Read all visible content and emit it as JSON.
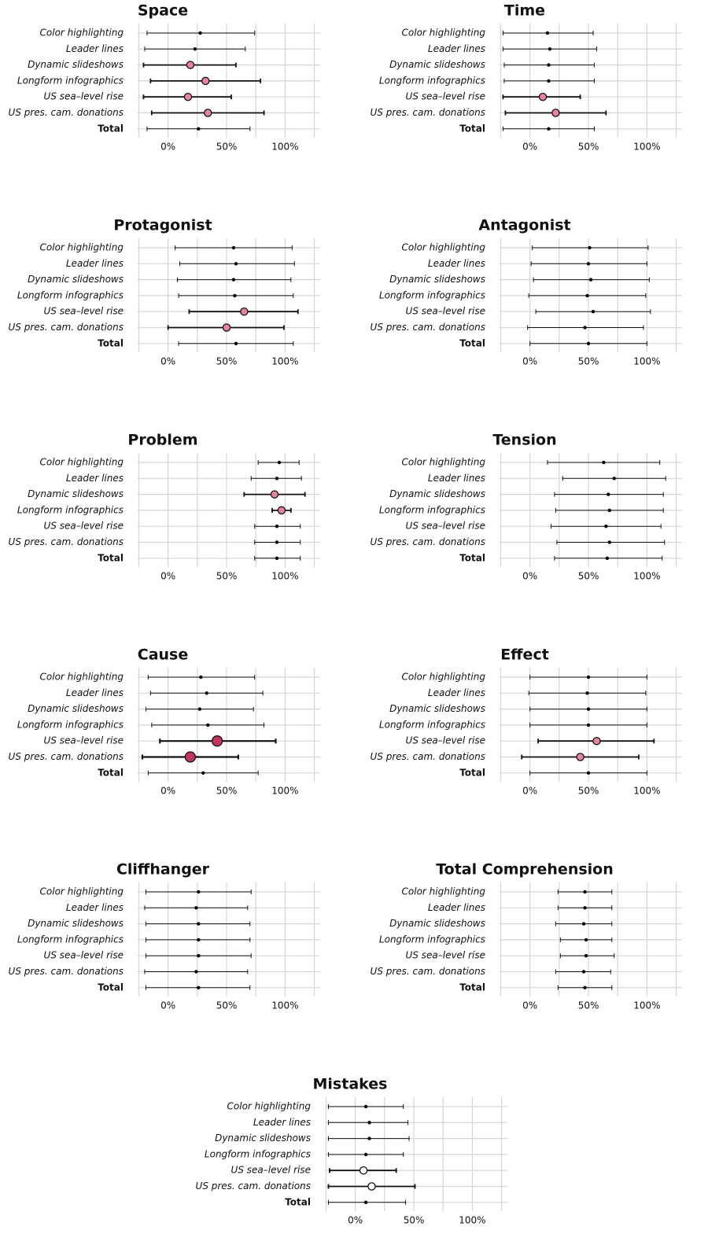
{
  "chart_data": [
    {
      "type": "errorbar",
      "title": "Space",
      "categories": [
        "Color highlighting",
        "Leader lines",
        "Dynamic slideshows",
        "Longform infographics",
        "US sea–level rise",
        "US pres. cam. donations",
        "Total"
      ],
      "values": [
        27.5,
        23,
        19,
        32,
        17,
        34,
        26
      ],
      "low": [
        -18,
        -20,
        -21,
        -15,
        -21,
        -14,
        -18
      ],
      "high": [
        74,
        66,
        58,
        79,
        54,
        82,
        70
      ],
      "point_colors": [
        "#000000",
        "#000000",
        "#e8849f",
        "#e8849f",
        "#e8849f",
        "#e8849f",
        "#000000"
      ],
      "point_sizes": [
        "small",
        "small",
        "medium",
        "medium",
        "medium",
        "medium",
        "small"
      ],
      "xlim": [
        -26,
        130
      ],
      "xgrid": [
        -25,
        0,
        25,
        50,
        75,
        100,
        125
      ],
      "xticks": [
        {
          "value": 0,
          "label": "0%"
        },
        {
          "value": 50,
          "label": "50%"
        },
        {
          "value": 100,
          "label": "100%"
        }
      ]
    },
    {
      "type": "errorbar",
      "title": "Time",
      "categories": [
        "Color highlighting",
        "Leader lines",
        "Dynamic slideshows",
        "Longform infographics",
        "US sea–level rise",
        "US pres. cam. donations",
        "Total"
      ],
      "values": [
        15,
        17,
        16,
        16,
        11,
        22,
        16
      ],
      "low": [
        -23,
        -23,
        -22,
        -22,
        -23,
        -21,
        -23
      ],
      "high": [
        54,
        57,
        55,
        55,
        43,
        65,
        55
      ],
      "point_colors": [
        "#000000",
        "#000000",
        "#000000",
        "#000000",
        "#e8849f",
        "#e8849f",
        "#000000"
      ],
      "point_sizes": [
        "small",
        "small",
        "small",
        "small",
        "medium",
        "medium",
        "small"
      ],
      "xlim": [
        -26,
        130
      ],
      "xgrid": [
        -25,
        0,
        25,
        50,
        75,
        100,
        125
      ],
      "xticks": [
        {
          "value": 0,
          "label": "0%"
        },
        {
          "value": 50,
          "label": "50%"
        },
        {
          "value": 100,
          "label": "100%"
        }
      ]
    },
    {
      "type": "errorbar",
      "title": "Protagonist",
      "categories": [
        "Color highlighting",
        "Leader lines",
        "Dynamic slideshows",
        "Longform infographics",
        "US sea–level rise",
        "US pres. cam. donations",
        "Total"
      ],
      "values": [
        56,
        58,
        56,
        57,
        65,
        50,
        58
      ],
      "low": [
        6,
        10,
        8,
        9,
        18,
        0,
        9
      ],
      "high": [
        106,
        108,
        105,
        107,
        111,
        99,
        107
      ],
      "point_colors": [
        "#000000",
        "#000000",
        "#000000",
        "#000000",
        "#e8849f",
        "#e8849f",
        "#000000"
      ],
      "point_sizes": [
        "small",
        "small",
        "small",
        "small",
        "medium",
        "medium",
        "small"
      ],
      "xlim": [
        -26,
        130
      ],
      "xgrid": [
        -25,
        0,
        25,
        50,
        75,
        100,
        125
      ],
      "xticks": [
        {
          "value": 0,
          "label": "0%"
        },
        {
          "value": 50,
          "label": "50%"
        },
        {
          "value": 100,
          "label": "100%"
        }
      ]
    },
    {
      "type": "errorbar",
      "title": "Antagonist",
      "categories": [
        "Color highlighting",
        "Leader lines",
        "Dynamic slideshows",
        "Longform infographics",
        "US sea–level rise",
        "US pres. cam. donations",
        "Total"
      ],
      "values": [
        51,
        50,
        52,
        49,
        54,
        47,
        50
      ],
      "low": [
        2,
        1,
        3,
        -1,
        5,
        -2,
        0
      ],
      "high": [
        101,
        100,
        102,
        99,
        103,
        97,
        100
      ],
      "point_colors": [
        "#000000",
        "#000000",
        "#000000",
        "#000000",
        "#000000",
        "#000000",
        "#000000"
      ],
      "point_sizes": [
        "small",
        "small",
        "small",
        "small",
        "small",
        "small",
        "small"
      ],
      "xlim": [
        -26,
        130
      ],
      "xgrid": [
        -25,
        0,
        25,
        50,
        75,
        100,
        125
      ],
      "xticks": [
        {
          "value": 0,
          "label": "0%"
        },
        {
          "value": 50,
          "label": "50%"
        },
        {
          "value": 100,
          "label": "100%"
        }
      ]
    },
    {
      "type": "errorbar",
      "title": "Problem",
      "categories": [
        "Color highlighting",
        "Leader lines",
        "Dynamic slideshows",
        "Longform infographics",
        "US sea–level rise",
        "US pres. cam. donations",
        "Total"
      ],
      "values": [
        95,
        93,
        91,
        97,
        93,
        93,
        93
      ],
      "low": [
        77,
        71,
        65,
        89,
        74,
        74,
        74
      ],
      "high": [
        112,
        114,
        117,
        105,
        113,
        113,
        113
      ],
      "point_colors": [
        "#000000",
        "#000000",
        "#e8849f",
        "#e8849f",
        "#000000",
        "#000000",
        "#000000"
      ],
      "point_sizes": [
        "small",
        "small",
        "medium",
        "medium",
        "small",
        "small",
        "small"
      ],
      "xlim": [
        -26,
        130
      ],
      "xgrid": [
        -25,
        0,
        25,
        50,
        75,
        100,
        125
      ],
      "xticks": [
        {
          "value": 0,
          "label": "0%"
        },
        {
          "value": 50,
          "label": "50%"
        },
        {
          "value": 100,
          "label": "100%"
        }
      ]
    },
    {
      "type": "errorbar",
      "title": "Tension",
      "categories": [
        "Color highlighting",
        "Leader lines",
        "Dynamic slideshows",
        "Longform infographics",
        "US sea–level rise",
        "US pres. cam. donations",
        "Total"
      ],
      "values": [
        63,
        72,
        67,
        68,
        65,
        68,
        66
      ],
      "low": [
        15,
        28,
        21,
        22,
        18,
        23,
        21
      ],
      "high": [
        111,
        116,
        114,
        114,
        112,
        115,
        113
      ],
      "point_colors": [
        "#000000",
        "#000000",
        "#000000",
        "#000000",
        "#000000",
        "#000000",
        "#000000"
      ],
      "point_sizes": [
        "small",
        "small",
        "small",
        "small",
        "small",
        "small",
        "small"
      ],
      "xlim": [
        -26,
        130
      ],
      "xgrid": [
        -25,
        0,
        25,
        50,
        75,
        100,
        125
      ],
      "xticks": [
        {
          "value": 0,
          "label": "0%"
        },
        {
          "value": 50,
          "label": "50%"
        },
        {
          "value": 100,
          "label": "100%"
        }
      ]
    },
    {
      "type": "errorbar",
      "title": "Cause",
      "categories": [
        "Color highlighting",
        "Leader lines",
        "Dynamic slideshows",
        "Longform infographics",
        "US sea–level rise",
        "US pres. cam. donations",
        "Total"
      ],
      "values": [
        28,
        33,
        27,
        34,
        42,
        19,
        30
      ],
      "low": [
        -17,
        -15,
        -19,
        -14,
        -7,
        -22,
        -17
      ],
      "high": [
        74,
        81,
        73,
        82,
        92,
        60,
        77
      ],
      "point_colors": [
        "#000000",
        "#000000",
        "#000000",
        "#000000",
        "#c0355e",
        "#c0355e",
        "#000000"
      ],
      "point_sizes": [
        "small",
        "small",
        "small",
        "small",
        "large",
        "large",
        "small"
      ],
      "xlim": [
        -26,
        130
      ],
      "xgrid": [
        -25,
        0,
        25,
        50,
        75,
        100,
        125
      ],
      "xticks": [
        {
          "value": 0,
          "label": "0%"
        },
        {
          "value": 50,
          "label": "50%"
        },
        {
          "value": 100,
          "label": "100%"
        }
      ]
    },
    {
      "type": "errorbar",
      "title": "Effect",
      "categories": [
        "Color highlighting",
        "Leader lines",
        "Dynamic slideshows",
        "Longform infographics",
        "US sea–level rise",
        "US pres. cam. donations",
        "Total"
      ],
      "values": [
        50,
        49,
        50,
        50,
        57,
        43,
        50
      ],
      "low": [
        0,
        -1,
        0,
        0,
        7,
        -7,
        0
      ],
      "high": [
        100,
        99,
        100,
        100,
        106,
        93,
        100
      ],
      "point_colors": [
        "#000000",
        "#000000",
        "#000000",
        "#000000",
        "#e8849f",
        "#e8849f",
        "#000000"
      ],
      "point_sizes": [
        "small",
        "small",
        "small",
        "small",
        "medium",
        "medium",
        "small"
      ],
      "xlim": [
        -26,
        130
      ],
      "xgrid": [
        -25,
        0,
        25,
        50,
        75,
        100,
        125
      ],
      "xticks": [
        {
          "value": 0,
          "label": "0%"
        },
        {
          "value": 50,
          "label": "50%"
        },
        {
          "value": 100,
          "label": "100%"
        }
      ]
    },
    {
      "type": "errorbar",
      "title": "Cliffhanger",
      "categories": [
        "Color highlighting",
        "Leader lines",
        "Dynamic slideshows",
        "Longform infographics",
        "US sea–level rise",
        "US pres. cam. donations",
        "Total"
      ],
      "values": [
        26,
        24,
        26,
        26,
        26,
        24,
        26
      ],
      "low": [
        -19,
        -20,
        -19,
        -19,
        -19,
        -20,
        -19
      ],
      "high": [
        71,
        68,
        70,
        70,
        71,
        68,
        70
      ],
      "point_colors": [
        "#000000",
        "#000000",
        "#000000",
        "#000000",
        "#000000",
        "#000000",
        "#000000"
      ],
      "point_sizes": [
        "small",
        "small",
        "small",
        "small",
        "small",
        "small",
        "small"
      ],
      "xlim": [
        -26,
        130
      ],
      "xgrid": [
        -25,
        0,
        25,
        50,
        75,
        100,
        125
      ],
      "xticks": [
        {
          "value": 0,
          "label": "0%"
        },
        {
          "value": 50,
          "label": "50%"
        },
        {
          "value": 100,
          "label": "100%"
        }
      ]
    },
    {
      "type": "errorbar",
      "title": "Total Comprehension",
      "categories": [
        "Color highlighting",
        "Leader lines",
        "Dynamic slideshows",
        "Longform infographics",
        "US sea–level rise",
        "US pres. cam. donations",
        "Total"
      ],
      "values": [
        47,
        47,
        46,
        48,
        48,
        46,
        47
      ],
      "low": [
        24,
        24,
        22,
        26,
        26,
        22,
        24
      ],
      "high": [
        70,
        70,
        70,
        70,
        72,
        69,
        70
      ],
      "point_colors": [
        "#000000",
        "#000000",
        "#000000",
        "#000000",
        "#000000",
        "#000000",
        "#000000"
      ],
      "point_sizes": [
        "small",
        "small",
        "small",
        "small",
        "small",
        "small",
        "small"
      ],
      "xlim": [
        -26,
        130
      ],
      "xgrid": [
        -25,
        0,
        25,
        50,
        75,
        100,
        125
      ],
      "xticks": [
        {
          "value": 0,
          "label": "0%"
        },
        {
          "value": 50,
          "label": "50%"
        },
        {
          "value": 100,
          "label": "100%"
        }
      ]
    },
    {
      "type": "errorbar",
      "title": "Mistakes",
      "categories": [
        "Color highlighting",
        "Leader lines",
        "Dynamic slideshows",
        "Longform infographics",
        "US sea–level rise",
        "US pres. cam. donations",
        "Total"
      ],
      "values": [
        9,
        12,
        12,
        9,
        7,
        14,
        9
      ],
      "low": [
        -23,
        -23,
        -23,
        -23,
        -22,
        -23,
        -23
      ],
      "high": [
        41,
        45,
        46,
        41,
        35,
        51,
        43
      ],
      "point_colors": [
        "#000000",
        "#000000",
        "#000000",
        "#000000",
        "#ffffff",
        "#ffffff",
        "#000000"
      ],
      "point_sizes": [
        "small",
        "small",
        "small",
        "small",
        "medium",
        "medium",
        "small"
      ],
      "xlim": [
        -26,
        130
      ],
      "xgrid": [
        -25,
        0,
        25,
        50,
        75,
        100,
        125
      ],
      "xticks": [
        {
          "value": 0,
          "label": "0%"
        },
        {
          "value": 50,
          "label": "50%"
        },
        {
          "value": 100,
          "label": "100%"
        }
      ]
    }
  ]
}
